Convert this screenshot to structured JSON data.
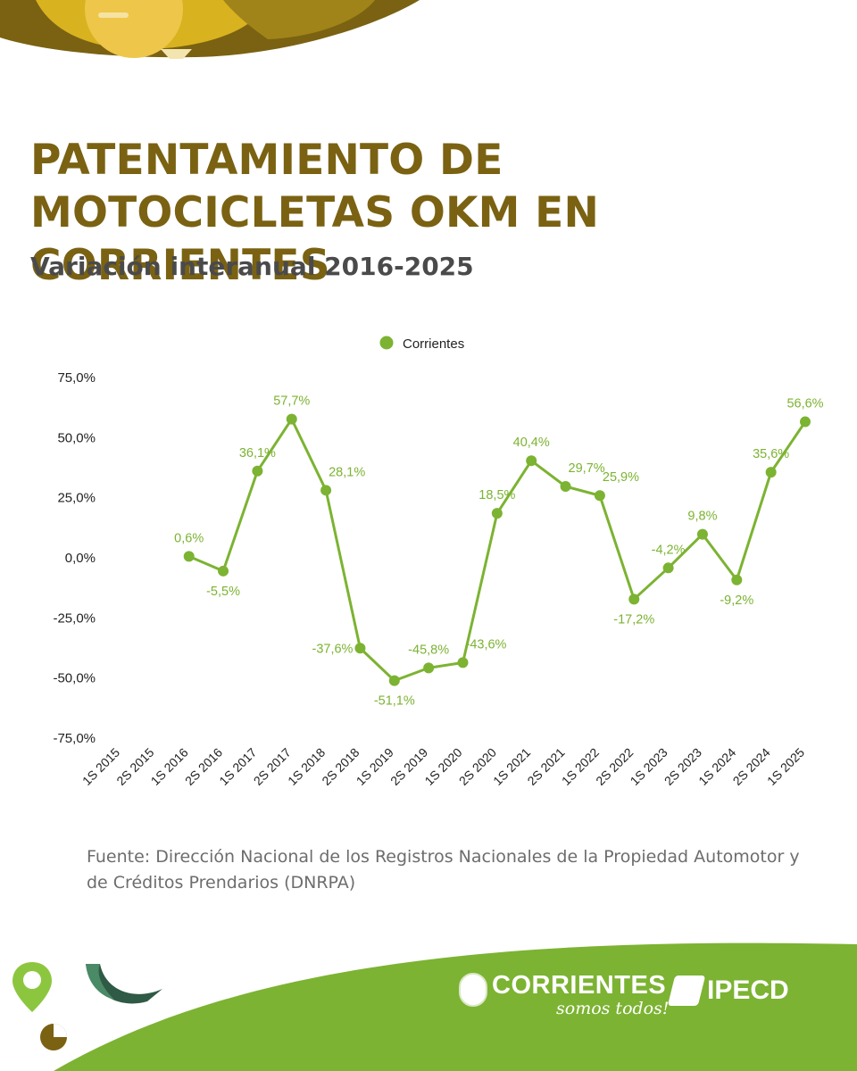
{
  "header": {
    "title": "PATENTAMIENTO DE MOTOCICLETAS OKM EN CORRIENTES",
    "subtitle": "Variación interanual 2016-2025"
  },
  "chart_data": {
    "type": "line",
    "title": "",
    "xlabel": "",
    "ylabel": "",
    "legend_position": "top-center",
    "grid": false,
    "ylim": [
      -75,
      75
    ],
    "yticks": [
      "75,0%",
      "50,0%",
      "25,0%",
      "0,0%",
      "-25,0%",
      "-50,0%",
      "-75,0%"
    ],
    "categories": [
      "1S 2015",
      "2S 2015",
      "1S 2016",
      "2S 2016",
      "1S 2017",
      "2S 2017",
      "1S 2018",
      "2S 2018",
      "1S 2019",
      "2S 2019",
      "1S 2020",
      "2S 2020",
      "1S 2021",
      "2S 2021",
      "1S 2022",
      "2S 2022",
      "1S 2023",
      "2S 2023",
      "1S 2024",
      "2S 2024",
      "1S 2025"
    ],
    "series": [
      {
        "name": "Corrientes",
        "color": "#7cb332",
        "values": [
          null,
          null,
          0.6,
          -5.5,
          36.1,
          57.7,
          28.1,
          -37.6,
          -51.1,
          -45.8,
          -43.6,
          18.5,
          40.4,
          29.7,
          25.9,
          -17.2,
          -4.2,
          9.8,
          -9.2,
          35.6,
          56.6
        ],
        "labels": [
          null,
          null,
          "0,6%",
          "-5,5%",
          "36,1%",
          "57,7%",
          "28,1%",
          "-37,6%",
          "-51,1%",
          "-45,8%",
          "-43,6%",
          "18,5%",
          "40,4%",
          "29,7%",
          "25,9%",
          "-17,2%",
          "-4,2%",
          "9,8%",
          "-9,2%",
          "35,6%",
          "56,6%"
        ],
        "label_side": [
          null,
          null,
          "above",
          "below",
          "above",
          "above",
          "right",
          "left",
          "below",
          "above",
          "right",
          "above",
          "above",
          "right",
          "right",
          "below",
          "above",
          "above",
          "below",
          "above",
          "above"
        ]
      }
    ]
  },
  "footer": {
    "source_line1": "Fuente: Dirección Nacional de los Registros Nacionales  de la Propiedad Automotor y",
    "source_line2": "de Créditos Prendarios (DNRPA)",
    "brand_name": "CORRIENTES",
    "brand_slogan": "somos todos!",
    "partner_name": "IPECD"
  },
  "colors": {
    "title": "#7a6212",
    "accent_green": "#7cb332",
    "gold": "#d9b21f",
    "olive": "#7a6212"
  }
}
